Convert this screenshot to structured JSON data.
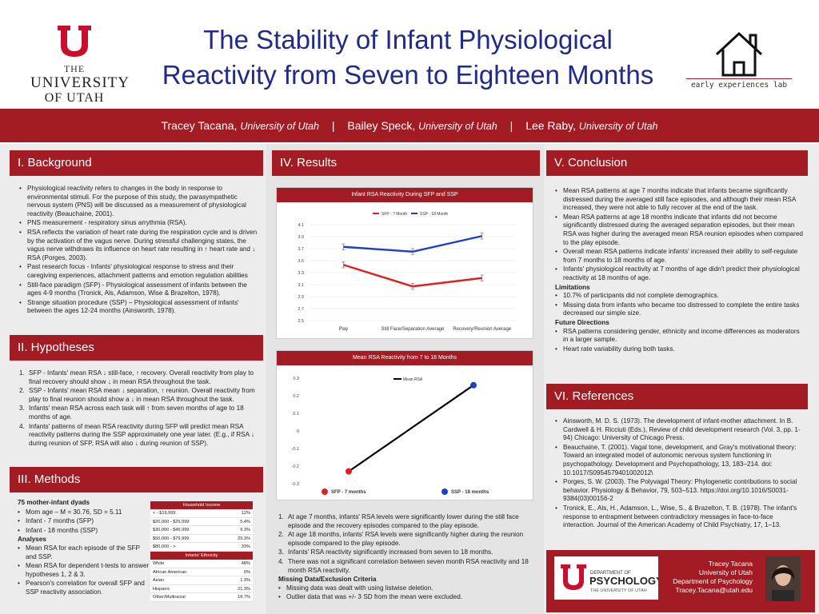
{
  "header": {
    "university": {
      "line1": "THE",
      "line2": "UNIVERSITY",
      "line3": "OF UTAH"
    },
    "title_line1": "The Stability of Infant Physiological",
    "title_line2": "Reactivity from Seven to Eighteen Months",
    "lab_name": "early experiences lab"
  },
  "authors": [
    {
      "name": "Tracey Tacana,",
      "affiliation": "University of Utah"
    },
    {
      "name": "Bailey Speck,",
      "affiliation": "University of Utah"
    },
    {
      "name": "Lee Raby,",
      "affiliation": "University of Utah"
    }
  ],
  "author_separator": "|",
  "background": {
    "heading": "I. Background",
    "bullets": [
      "Physiological reactivity  refers to changes in the body in response to environmental stimuli. For the purpose of this study, the parasympathetic nervous system (PNS) will be discussed as a measurement of physiological reactivity (Beauchaine, 2001).",
      "PNS measurement - respiratory sinus arrythmia (RSA).",
      "RSA reflects the variation of heart rate during the respiration cycle and is driven by the activation of the vagus nerve. During stressful challenging states, the vagus nerve withdraws its influence on heart rate resulting in ↑ heart rate and ↓ RSA (Porges, 2003).",
      "Past research focus - Infants' physiological response to stress and their caregiving experiences, attachment patterns and emotion regulation abilities",
      "Still-face paradigm (SFP) -  Physiological assessment of infants between the ages 4-9 months (Tronick, Als, Adamson, Wise & Brazelton, 1978).",
      "Strange situation procedure (SSP) – Physiological assessment of infants' between the ages 12-24 months (Ainsworth, 1978)."
    ]
  },
  "hypotheses": {
    "heading": "II. Hypotheses",
    "items": [
      "SFP - Infants' mean RSA ↓ still-face, ↑ recovery. Overall reactivity from play to final recovery should show ↓ in mean RSA throughout the task.",
      "SSP - Infants' mean RSA mean ↓ separation, ↑ reunion. Overall reactivity from play to final reunion should show a ↓ in mean RSA throughout the task.",
      "Infants' mean RSA across each task will ↑ from seven months of age to 18 months of age.",
      "Infants' patterns of mean RSA reactivity during SFP will predict mean RSA reactivity patterns during the SSP approximately one year later. (E.g., if RSA ↓ during reunion of SFP, RSA will also ↓ during reunion of SSP)."
    ]
  },
  "methods": {
    "heading": "III. Methods",
    "dyads": "75 mother-infant dyads",
    "participant_bullets": [
      "Mom age  – M = 30.76, SD  = 5.11",
      "Infant - 7 months (SFP)",
      "Infant -  18 months (SSP)"
    ],
    "analyses_label": "Analyses",
    "analyses_bullets": [
      "Mean RSA for each episode of the SFP and  SSP.",
      "Mean RSA for dependent t-tests to answer hypotheses 1, 2 & 3.",
      "Pearson's correlation for overall SFP and SSP reactivity association."
    ],
    "income_table": {
      "title": "Household Income",
      "rows": [
        [
          "< - $19,999",
          "12%"
        ],
        [
          "$20,000 - $29,999",
          "5.4%"
        ],
        [
          "$30,000 - $49,999",
          "9.3%"
        ],
        [
          "$50,000 - $79,999",
          "29.3%"
        ],
        [
          "$80,000 - >",
          "33%"
        ]
      ]
    },
    "ethnicity_table": {
      "title": "Infants' Ethnicity",
      "rows": [
        [
          "White",
          "48%"
        ],
        [
          "African American",
          "0%"
        ],
        [
          "Asian",
          "1.3%"
        ],
        [
          "Hispanic",
          "21.3%"
        ],
        [
          "Other/Multiracial",
          "18.7%"
        ]
      ]
    }
  },
  "results": {
    "heading": "IV. Results",
    "findings": [
      "At age 7 months, infants' RSA levels were significantly lower during the still face episode and the recovery episodes compared to the play episode.",
      "At age 18 months, infants' RSA levels were significantly higher during the reunion episode compared to the play episode.",
      "Infants' RSA reactivity significantly increased from seven to 18 months.",
      "There was not a significant correlation between seven month RSA reactivity and 18 month RSA reactivity."
    ],
    "missing_label": "Missing Data/Exclusion Criteria",
    "missing_bullets": [
      "Missing data was dealt with using listwise deletion.",
      "Outlier data that was +/- 3 SD from the mean were excluded."
    ]
  },
  "conclusion": {
    "heading": "V. Conclusion",
    "bullets": [
      "Mean RSA patterns at age 7 months indicate that infants became significantly distressed during the averaged still face episodes, and although their mean RSA increased, they were not able to fully recover at the end of the task.",
      "Mean RSA patterns at age 18 months indicate that infants did not become significantly distressed during the averaged separation episodes, but their mean RSA was higher during the averaged mean RSA reunion episodes when compared to the play episode.",
      "Overall mean RSA patterns indicate infants' increased their ability to self-regulate from 7 months to 18 months of age.",
      "Infants' physiological reactivity at 7 months of age didn't predict their physiological reactivity at 18 months of age."
    ],
    "limitations_label": "Limitations",
    "limitations": [
      "10.7% of participants did not complete demographics.",
      "Missing data from infants who became too distressed to complete the entire tasks decreased our simple size."
    ],
    "future_label": "Future Directions",
    "future": [
      "RSA patterns considering gender, ethnicity and income differences as moderators in a larger sample.",
      "Heart rate variability during both tasks."
    ]
  },
  "references": {
    "heading": "VI. References",
    "items": [
      "Ainsworth, M. D. S. (1973). The development of infant-mother attachment. In B. Cardwell & H. Ricciuti (Eds.), Review of child development research (Vol. 3, pp. 1-94) Chicago: University of Chicago Press.",
      "Beauchaine, T. (2001). Vagal tone, development, and Gray's motivational theory: Toward an integrated model of autonomic nervous system functioning in psychopathology. Development and Psychopathology, 13, 183–214. doi: 10.1017/S0954579401002012\\",
      "Porges, S. W. (2003). The Polyvagal Theory: Phylogenetic contributions to social behavior. Physiology & Behavior, 79, 503–513. https://doi.org/10.1016/S0031-9384(03)00156-2",
      "Tronick, E., Als, H., Adamson, L., Wise, S., & Brazelton, T. B. (1978). The infant's response to entrapment between contradictory messages in face-to-face interaction. Journal of the American Academy of Child Psychiatry, 17, 1–13."
    ]
  },
  "contact": {
    "name": "Tracey Tacana",
    "org": "University of Utah",
    "dept": "Department of Psychology",
    "email": "Tracey.Tacana@utah.edu",
    "logo_line1": "DEPARTMENT OF",
    "logo_line2": "PSYCHOLOGY",
    "logo_line3": "THE UNIVERSITY OF UTAH"
  },
  "colors": {
    "brand_red": "#a31c24",
    "title_blue": "#1f2a8a",
    "sfp_red": "#e02020",
    "ssp_blue": "#1f3fc4"
  },
  "chart_data": [
    {
      "type": "line",
      "title": "Infant RSA Reactivity During SFP and SSP",
      "categories": [
        "Play",
        "Still Face/Separation Average",
        "Recovery/Reunion Average"
      ],
      "series": [
        {
          "name": "SFP - 7 Month",
          "values": [
            3.43,
            3.07,
            3.21
          ]
        },
        {
          "name": "SSP - 18 Month",
          "values": [
            3.73,
            3.65,
            3.91
          ]
        }
      ],
      "ylim": [
        2.5,
        4.1
      ],
      "yticks": [
        "2.5",
        "2.7",
        "2.9",
        "3.1",
        "3.3",
        "3.5",
        "3.7",
        "3.9",
        "4.1"
      ],
      "grid": true,
      "error_bars": true,
      "legend": "top"
    },
    {
      "type": "line",
      "title": "Mean RSA Reactivity from 7 to 18 Months",
      "categories": [
        "SFP - 7 months",
        "SSP - 18 months"
      ],
      "series": [
        {
          "name": "Mean RSA",
          "values": [
            -0.23,
            0.26
          ]
        }
      ],
      "ylim": [
        -0.3,
        0.3
      ],
      "yticks": [
        "0.3",
        "0.2",
        "0.1",
        "0",
        "-0.1",
        "-0.2",
        "-0.3"
      ],
      "grid": false,
      "legend": "top"
    }
  ]
}
